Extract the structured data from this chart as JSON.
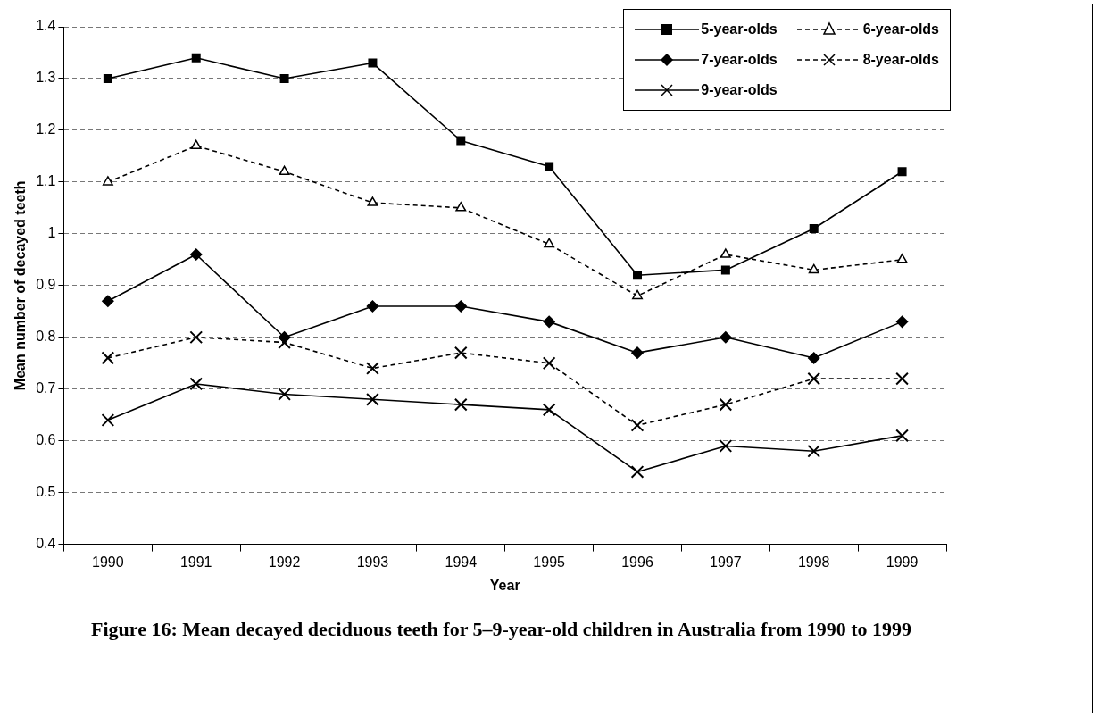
{
  "chart_data": {
    "type": "line",
    "xlabel": "Year",
    "ylabel": "Mean number of decayed teeth",
    "categories": [
      "1990",
      "1991",
      "1992",
      "1993",
      "1994",
      "1995",
      "1996",
      "1997",
      "1998",
      "1999"
    ],
    "series": [
      {
        "name": "5-year-olds",
        "color": "#000000",
        "marker": "square",
        "line_style": "solid",
        "values": [
          1.3,
          1.34,
          1.3,
          1.33,
          1.18,
          1.13,
          0.92,
          0.93,
          1.01,
          1.12
        ]
      },
      {
        "name": "6-year-olds",
        "color": "#000000",
        "marker": "triangle",
        "line_style": "dashed",
        "values": [
          1.1,
          1.17,
          1.12,
          1.06,
          1.05,
          0.98,
          0.88,
          0.96,
          0.93,
          0.95
        ]
      },
      {
        "name": "7-year-olds",
        "color": "#000000",
        "marker": "diamond",
        "line_style": "solid",
        "values": [
          0.87,
          0.96,
          0.8,
          0.86,
          0.86,
          0.83,
          0.77,
          0.8,
          0.76,
          0.83
        ]
      },
      {
        "name": "8-year-olds",
        "color": "#000000",
        "marker": "cross",
        "line_style": "dashed",
        "values": [
          0.76,
          0.8,
          0.79,
          0.74,
          0.77,
          0.75,
          0.63,
          0.67,
          0.72,
          0.72
        ]
      },
      {
        "name": "9-year-olds",
        "color": "#000000",
        "marker": "cross",
        "line_style": "solid",
        "values": [
          0.64,
          0.71,
          0.69,
          0.68,
          0.67,
          0.66,
          0.54,
          0.59,
          0.58,
          0.61
        ]
      }
    ],
    "ylim": [
      0.4,
      1.4
    ],
    "yticks": [
      0.4,
      0.5,
      0.6,
      0.7,
      0.8,
      0.9,
      1,
      1.1,
      1.2,
      1.3,
      1.4
    ],
    "grid": "y",
    "legend": "top right",
    "annotations": [
      "Figure 16:  Mean decayed deciduous teeth for 5–9-year-old children in Australia from 1990 to 1999"
    ]
  }
}
